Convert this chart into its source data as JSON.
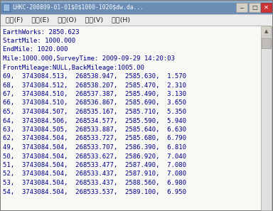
{
  "title_bar": "LHKC-200809-01-01$0$1000-1020$dw.da...",
  "menu_items": [
    "文件(F)  编辑(E)  格式(O)  查看(V)  帮助(H)"
  ],
  "content_lines": [
    "EarthWorks: 2850.623",
    "StartMile: 1000.000",
    "EndMile: 1020.000",
    "Mile:1000.000,SurveyTime: 2009-09-29 14:20:03",
    "FrontMileage:NULL,BackMileage:1005.00",
    "69,  3743084.513,  268538.947,  2585.630,  1.570",
    "68,  3743084.512,  268538.207,  2585.470,  2.310",
    "67,  3743084.510,  268537.387,  2585.490,  3.130",
    "66,  3743084.510,  268536.867,  2585.690,  3.650",
    "65,  3743084.507,  268535.167,  2585.710,  5.350",
    "64,  3743084.506,  268534.577,  2585.590,  5.940",
    "63,  3743084.505,  268533.887,  2585.640,  6.630",
    "62,  3743084.504,  268533.727,  2585.680,  6.790",
    "49,  3743084.504,  268533.707,  2586.390,  6.810",
    "50,  3743084.504,  268533.627,  2586.920,  7.040",
    "51,  3743084.504,  268533.477,  2587.490,  7.080",
    "52,  3743084.504,  268533.437,  2587.910,  7.080",
    "53,  3743084.504,  268533.437,  2588.560,  6.980",
    "54,  3743084.504,  268533.537,  2589.100,  6.950"
  ],
  "title_bg": "#6b8db5",
  "title_fg": "#ffffff",
  "menu_bg": "#ececec",
  "menu_fg": "#222222",
  "content_bg": "#f8f8f5",
  "content_fg": "#00008b",
  "outer_bg": "#aaaaaa",
  "scrollbar_bg": "#e8e8e8",
  "close_btn_color": "#cc3333",
  "gray_btn_color": "#d4d0c8",
  "title_font_size": 5.8,
  "menu_font_size": 6.8,
  "content_font_size": 6.5,
  "fig_width": 3.84,
  "fig_height": 2.97,
  "dpi": 100
}
